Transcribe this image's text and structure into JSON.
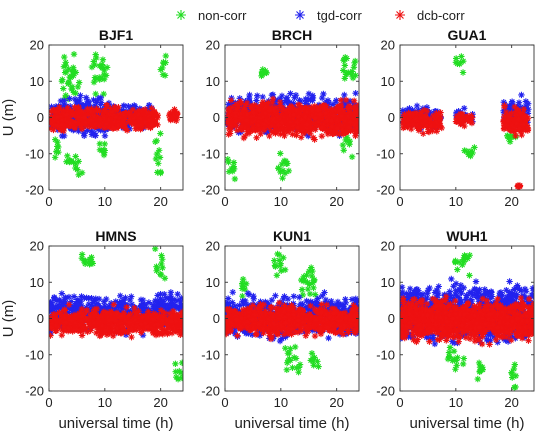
{
  "legend": [
    {
      "name": "non-corr",
      "color": "#22dd22",
      "marker": "asterisk"
    },
    {
      "name": "tgd-corr",
      "color": "#2222ee",
      "marker": "asterisk"
    },
    {
      "name": "dcb-corr",
      "color": "#ee1111",
      "marker": "asterisk"
    }
  ],
  "chart_data": [
    {
      "type": "scatter",
      "title": "BJF1",
      "xlabel": "",
      "ylabel": "U (m)",
      "xlim": [
        0,
        24
      ],
      "ylim": [
        -20,
        20
      ],
      "xticks": [
        0,
        10,
        20
      ],
      "yticks": [
        -20,
        -10,
        0,
        10,
        20
      ],
      "series": [
        {
          "name": "non-corr",
          "clusters": [
            {
              "x": [
                2.0,
                5.5
              ],
              "y": [
                0,
                20
              ]
            },
            {
              "x": [
                1.0,
                2.0
              ],
              "y": [
                -12,
                -4
              ]
            },
            {
              "x": [
                3.0,
                6.0
              ],
              "y": [
                -18,
                -8
              ]
            },
            {
              "x": [
                7.5,
                10.5
              ],
              "y": [
                4,
                20
              ]
            },
            {
              "x": [
                9.0,
                10.0
              ],
              "y": [
                -12,
                -6
              ]
            },
            {
              "x": [
                19.0,
                20.5
              ],
              "y": [
                -18,
                -2
              ]
            },
            {
              "x": [
                20.0,
                21.0
              ],
              "y": [
                10,
                20
              ]
            }
          ]
        },
        {
          "name": "tgd-corr",
          "clusters": [
            {
              "x": [
                0.3,
                18.5
              ],
              "y": [
                -4,
                5
              ]
            },
            {
              "x": [
                1.0,
                11.0
              ],
              "y": [
                -7,
                7
              ]
            }
          ]
        },
        {
          "name": "dcb-corr",
          "clusters": [
            {
              "x": [
                0.3,
                19.5
              ],
              "y": [
                -5,
                4
              ]
            },
            {
              "x": [
                21.5,
                23.0
              ],
              "y": [
                -2,
                4
              ]
            }
          ]
        }
      ]
    },
    {
      "type": "scatter",
      "title": "BRCH",
      "xlabel": "",
      "ylabel": "",
      "xlim": [
        0,
        24
      ],
      "ylim": [
        -20,
        20
      ],
      "xticks": [
        0,
        10,
        20
      ],
      "yticks": [
        -20,
        -10,
        0,
        10,
        20
      ],
      "series": [
        {
          "name": "non-corr",
          "clusters": [
            {
              "x": [
                0.5,
                2.0
              ],
              "y": [
                -20,
                -8
              ]
            },
            {
              "x": [
                6.5,
                7.5
              ],
              "y": [
                10,
                15
              ]
            },
            {
              "x": [
                9.5,
                11.5
              ],
              "y": [
                -20,
                -6
              ]
            },
            {
              "x": [
                20.5,
                23.5
              ],
              "y": [
                8,
                20
              ]
            },
            {
              "x": [
                21.0,
                23.0
              ],
              "y": [
                -12,
                -4
              ]
            }
          ]
        },
        {
          "name": "tgd-corr",
          "clusters": [
            {
              "x": [
                0.5,
                24.0
              ],
              "y": [
                -6,
                8
              ]
            }
          ]
        },
        {
          "name": "dcb-corr",
          "clusters": [
            {
              "x": [
                0.5,
                24.0
              ],
              "y": [
                -7,
                6
              ]
            }
          ]
        }
      ]
    },
    {
      "type": "scatter",
      "title": "GUA1",
      "xlabel": "",
      "ylabel": "",
      "xlim": [
        0,
        24
      ],
      "ylim": [
        -20,
        20
      ],
      "xticks": [
        0,
        10,
        20
      ],
      "yticks": [
        -20,
        -10,
        0,
        10,
        20
      ],
      "series": [
        {
          "name": "non-corr",
          "clusters": [
            {
              "x": [
                10.0,
                11.5
              ],
              "y": [
                10,
                19
              ]
            },
            {
              "x": [
                11.5,
                13.5
              ],
              "y": [
                -12,
                -6
              ]
            },
            {
              "x": [
                19.0,
                21.0
              ],
              "y": [
                -8,
                -3
              ]
            }
          ]
        },
        {
          "name": "tgd-corr",
          "clusters": [
            {
              "x": [
                0.5,
                7.5
              ],
              "y": [
                -4,
                4
              ]
            },
            {
              "x": [
                10.0,
                13.0
              ],
              "y": [
                -3,
                3
              ]
            },
            {
              "x": [
                18.5,
                23.0
              ],
              "y": [
                -5,
                7
              ]
            }
          ]
        },
        {
          "name": "dcb-corr",
          "clusters": [
            {
              "x": [
                0.5,
                7.5
              ],
              "y": [
                -5,
                3
              ]
            },
            {
              "x": [
                10.0,
                13.0
              ],
              "y": [
                -3,
                2
              ]
            },
            {
              "x": [
                18.5,
                23.0
              ],
              "y": [
                -6,
                4
              ]
            },
            {
              "x": [
                21.0,
                21.5
              ],
              "y": [
                -20,
                -18
              ]
            }
          ]
        }
      ]
    },
    {
      "type": "scatter",
      "title": "HMNS",
      "xlabel": "universal time (h)",
      "ylabel": "U (m)",
      "xlim": [
        0,
        24
      ],
      "ylim": [
        -20,
        20
      ],
      "xticks": [
        0,
        10,
        20
      ],
      "yticks": [
        -20,
        -10,
        0,
        10,
        20
      ],
      "series": [
        {
          "name": "non-corr",
          "clusters": [
            {
              "x": [
                5.0,
                8.0
              ],
              "y": [
                12,
                20
              ]
            },
            {
              "x": [
                19.0,
                21.0
              ],
              "y": [
                8,
                20
              ]
            },
            {
              "x": [
                22.5,
                24.0
              ],
              "y": [
                -18,
                -10
              ]
            }
          ]
        },
        {
          "name": "tgd-corr",
          "clusters": [
            {
              "x": [
                0.0,
                24.0
              ],
              "y": [
                -5,
                8
              ]
            }
          ]
        },
        {
          "name": "dcb-corr",
          "clusters": [
            {
              "x": [
                0.0,
                24.0
              ],
              "y": [
                -6,
                4
              ]
            }
          ]
        }
      ]
    },
    {
      "type": "scatter",
      "title": "KUN1",
      "xlabel": "universal time (h)",
      "ylabel": "",
      "xlim": [
        0,
        24
      ],
      "ylim": [
        -20,
        20
      ],
      "xticks": [
        0,
        10,
        20
      ],
      "yticks": [
        -20,
        -10,
        0,
        10,
        20
      ],
      "series": [
        {
          "name": "non-corr",
          "clusters": [
            {
              "x": [
                8.5,
                11.0
              ],
              "y": [
                10,
                20
              ]
            },
            {
              "x": [
                13.5,
                16.5
              ],
              "y": [
                4,
                18
              ]
            },
            {
              "x": [
                10.5,
                13.5
              ],
              "y": [
                -18,
                -6
              ]
            },
            {
              "x": [
                15.0,
                17.0
              ],
              "y": [
                -16,
                -8
              ]
            },
            {
              "x": [
                3.0,
                4.0
              ],
              "y": [
                4,
                12
              ]
            }
          ]
        },
        {
          "name": "tgd-corr",
          "clusters": [
            {
              "x": [
                0.0,
                24.0
              ],
              "y": [
                -7,
                8
              ]
            }
          ]
        },
        {
          "name": "dcb-corr",
          "clusters": [
            {
              "x": [
                0.0,
                24.0
              ],
              "y": [
                -6,
                5
              ]
            }
          ]
        }
      ]
    },
    {
      "type": "scatter",
      "title": "WUH1",
      "xlabel": "universal time (h)",
      "ylabel": "",
      "xlim": [
        0,
        24
      ],
      "ylim": [
        -20,
        20
      ],
      "xticks": [
        0,
        10,
        20
      ],
      "yticks": [
        -20,
        -10,
        0,
        10,
        20
      ],
      "series": [
        {
          "name": "non-corr",
          "clusters": [
            {
              "x": [
                9.5,
                12.5
              ],
              "y": [
                10,
                20
              ]
            },
            {
              "x": [
                8.5,
                11.5
              ],
              "y": [
                -16,
                -6
              ]
            },
            {
              "x": [
                13.0,
                15.0
              ],
              "y": [
                -18,
                -8
              ]
            },
            {
              "x": [
                19.5,
                21.0
              ],
              "y": [
                -20,
                -10
              ]
            }
          ]
        },
        {
          "name": "tgd-corr",
          "clusters": [
            {
              "x": [
                0.0,
                24.0
              ],
              "y": [
                -9,
                12
              ]
            }
          ]
        },
        {
          "name": "dcb-corr",
          "clusters": [
            {
              "x": [
                0.0,
                24.0
              ],
              "y": [
                -8,
                7
              ]
            }
          ]
        }
      ]
    }
  ]
}
